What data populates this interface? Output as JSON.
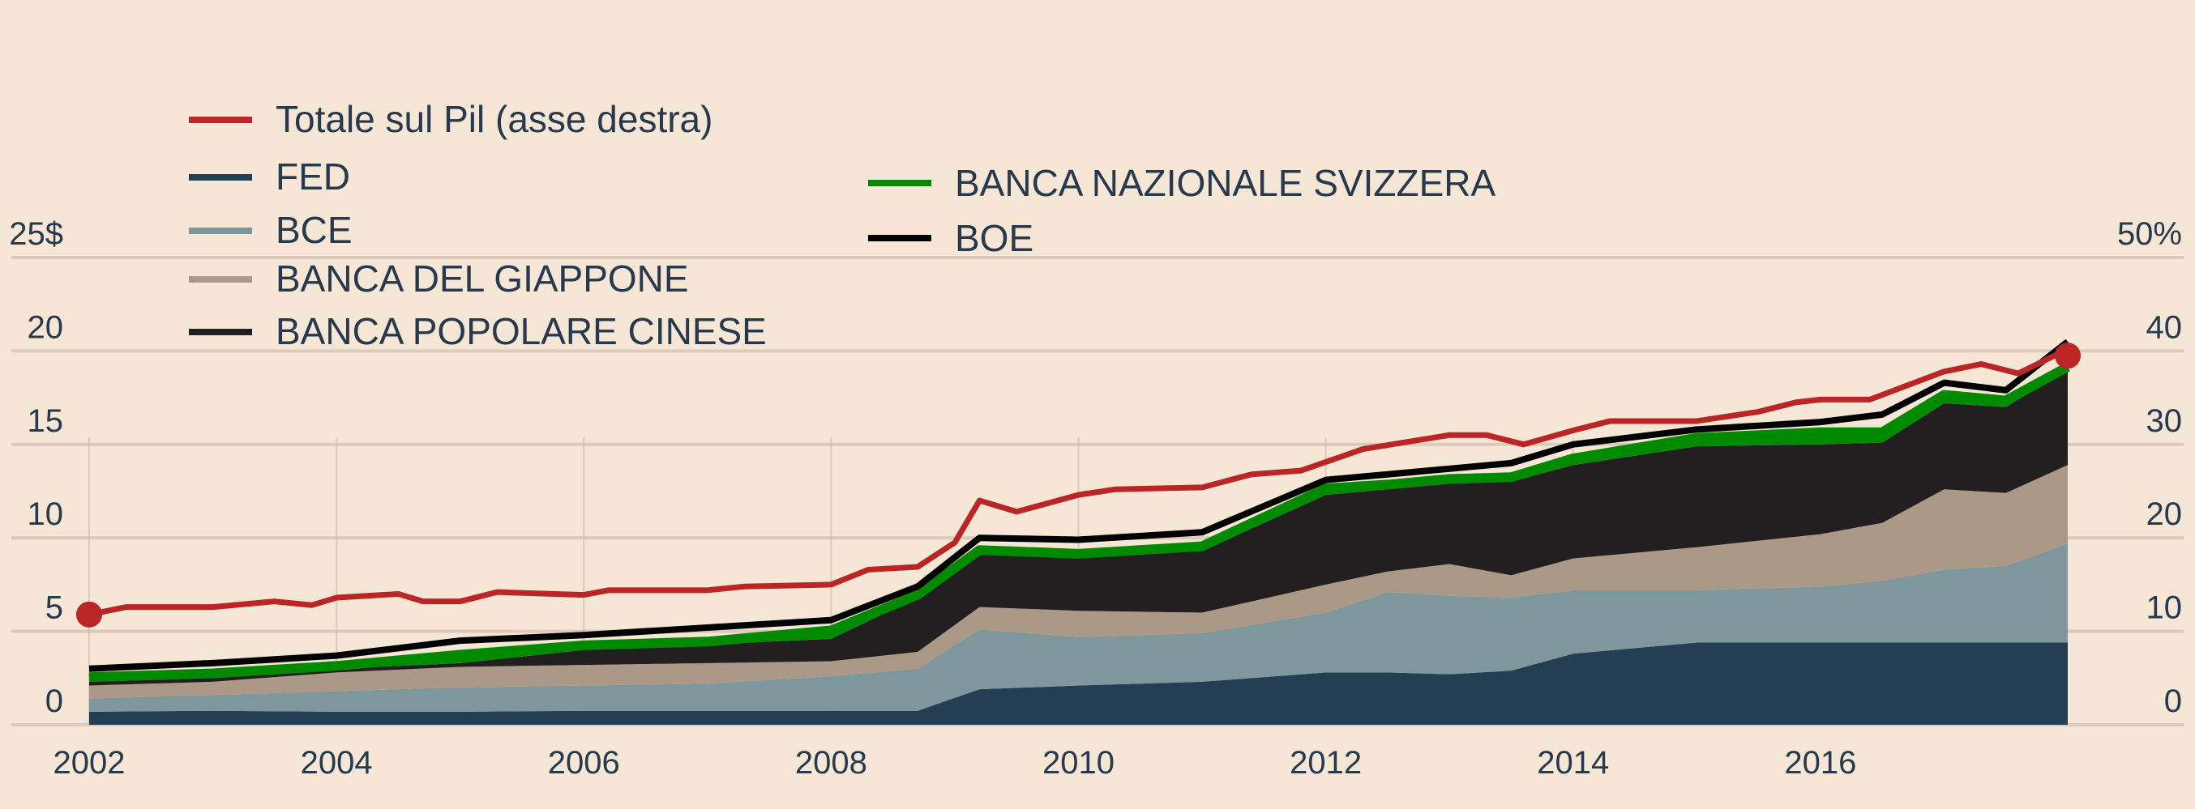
{
  "chart_data": {
    "type": "area",
    "stacked": true,
    "title": "",
    "xlabel": "",
    "ylabel_left": "",
    "ylabel_right": "",
    "x": [
      2002,
      2003,
      2004,
      2005,
      2006,
      2007,
      2008,
      2008.7,
      2009.2,
      2010,
      2011,
      2012,
      2012.5,
      2013,
      2013.5,
      2014,
      2015,
      2016,
      2016.5,
      2017,
      2017.5,
      2018
    ],
    "xticks": [
      "2002",
      "2004",
      "2006",
      "2008",
      "2010",
      "2012",
      "2014",
      "2016"
    ],
    "xtick_values": [
      2002,
      2004,
      2006,
      2008,
      2010,
      2012,
      2014,
      2016
    ],
    "xlim": [
      2002,
      2018
    ],
    "ylim_left": [
      0,
      25
    ],
    "yticks_left": [
      "0",
      "5",
      "10",
      "15",
      "20",
      "25$"
    ],
    "ylim_right": [
      0,
      50
    ],
    "yticks_right": [
      "0",
      "10",
      "20",
      "30",
      "40",
      "50%"
    ],
    "grid": true,
    "series": [
      {
        "name": "FED",
        "color": "#243f54",
        "values": [
          0.7,
          0.75,
          0.7,
          0.7,
          0.75,
          0.75,
          0.75,
          0.75,
          1.9,
          2.1,
          2.3,
          2.8,
          2.8,
          2.7,
          2.9,
          3.8,
          4.4,
          4.4,
          4.4,
          4.4,
          4.4,
          4.4
        ]
      },
      {
        "name": "BCE",
        "color": "#7e979c",
        "values": [
          0.7,
          0.85,
          1.1,
          1.3,
          1.35,
          1.45,
          1.85,
          2.25,
          3.2,
          2.6,
          2.6,
          3.2,
          4.3,
          4.2,
          3.9,
          3.4,
          2.8,
          3.0,
          3.3,
          3.9,
          4.1,
          5.3
        ]
      },
      {
        "name": "BANCA DEL GIAPPONE",
        "color": "#ab9886",
        "values": [
          0.7,
          0.7,
          1.0,
          1.1,
          1.1,
          1.1,
          0.8,
          0.9,
          1.2,
          1.4,
          1.1,
          1.5,
          1.1,
          1.7,
          1.2,
          1.7,
          2.3,
          2.8,
          3.1,
          4.3,
          3.9,
          4.2
        ]
      },
      {
        "name": "BANCA POPOLARE CINESE",
        "color": "#231f20",
        "values": [
          0.2,
          0.2,
          0.2,
          0.2,
          0.8,
          1.0,
          1.2,
          2.9,
          2.9,
          2.9,
          3.3,
          4.8,
          4.4,
          4.3,
          5.0,
          5.0,
          5.4,
          4.8,
          4.3,
          4.6,
          4.6,
          5.1
        ]
      },
      {
        "name": "BANCA NAZIONALE SVIZZERA",
        "color": "#008a00",
        "values": [
          0.4,
          0.4,
          0.3,
          0.6,
          0.4,
          0.3,
          0.6,
          0.3,
          0.3,
          0.3,
          0.4,
          0.5,
          0.4,
          0.4,
          0.4,
          0.5,
          0.6,
          0.8,
          0.7,
          0.6,
          0.5,
          0.3
        ]
      },
      {
        "name": "BOE",
        "color": "#000000",
        "values": [
          0.3,
          0.4,
          0.4,
          0.6,
          0.4,
          0.6,
          0.4,
          0.3,
          0.5,
          0.6,
          0.6,
          0.3,
          0.4,
          0.4,
          0.6,
          0.6,
          0.3,
          0.4,
          0.8,
          0.5,
          0.4,
          1.2
        ]
      }
    ],
    "total_line": {
      "name": "Totale sul Pil (asse destra)",
      "axis": "right",
      "color": "#bb2525",
      "x": [
        2002,
        2002.3,
        2003,
        2003.5,
        2003.8,
        2004,
        2004.5,
        2004.7,
        2005,
        2005.3,
        2006,
        2006.2,
        2007,
        2007.3,
        2008,
        2008.3,
        2008.7,
        2009,
        2009.2,
        2009.5,
        2010,
        2010.3,
        2011,
        2011.4,
        2011.8,
        2012.3,
        2013,
        2013.3,
        2013.6,
        2014,
        2014.3,
        2015,
        2015.5,
        2015.8,
        2016,
        2016.4,
        2017,
        2017.3,
        2017.6,
        2018
      ],
      "values": [
        11.8,
        12.6,
        12.6,
        13.2,
        12.8,
        13.6,
        14.0,
        13.2,
        13.2,
        14.2,
        13.9,
        14.4,
        14.4,
        14.8,
        15.0,
        16.6,
        16.9,
        19.5,
        24.0,
        22.8,
        24.6,
        25.2,
        25.4,
        26.8,
        27.2,
        29.5,
        31.0,
        31.0,
        30.0,
        31.5,
        32.5,
        32.5,
        33.5,
        34.5,
        34.8,
        34.8,
        37.8,
        38.6,
        37.6,
        40.2
      ],
      "markers": [
        "start",
        "end"
      ]
    },
    "legend_placement": "top-left"
  },
  "legend": {
    "total": "Totale sul Pil (asse destra)",
    "fed": "FED",
    "bce": "BCE",
    "boj": "BANCA DEL GIAPPONE",
    "pboc": "BANCA POPOLARE CINESE",
    "snb": "BANCA NAZIONALE SVIZZERA",
    "boe": "BOE"
  },
  "colors": {
    "background": "#f5e6d6",
    "text": "#26394d",
    "grid": "#dccbbb"
  }
}
